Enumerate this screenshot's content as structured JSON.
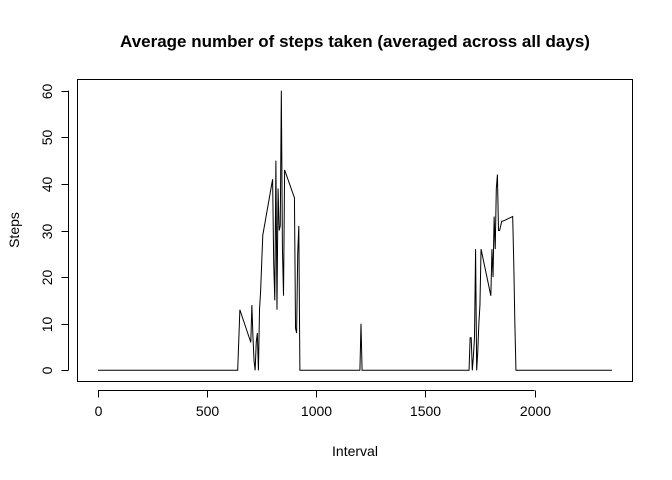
{
  "chart_data": {
    "type": "line",
    "title": "Average number of steps taken (averaged across all days)",
    "xlabel": "Interval",
    "ylabel": "Steps",
    "xlim": [
      -94,
      2449
    ],
    "ylim": [
      -2.4,
      62.4
    ],
    "xticks": [
      0,
      500,
      1000,
      1500,
      2000
    ],
    "xtick_labels": [
      "0",
      "500",
      "1000",
      "1500",
      "2000"
    ],
    "yticks": [
      0,
      10,
      20,
      30,
      40,
      50,
      60
    ],
    "ytick_labels": [
      "0",
      "10",
      "20",
      "30",
      "40",
      "50",
      "60"
    ],
    "grid": false,
    "legend": "none",
    "line_color": "#000000",
    "series": [
      {
        "x": [
          0,
          640,
          650,
          700,
          705,
          710,
          715,
          720,
          725,
          730,
          735,
          740,
          745,
          750,
          755,
          800,
          805,
          810,
          815,
          820,
          825,
          830,
          835,
          840,
          845,
          850,
          855,
          900,
          905,
          910,
          915,
          920,
          925,
          930,
          935,
          1200,
          1205,
          1210,
          1215,
          1700,
          1705,
          1710,
          1715,
          1720,
          1725,
          1730,
          1735,
          1740,
          1745,
          1750,
          1755,
          1800,
          1805,
          1810,
          1815,
          1820,
          1825,
          1830,
          1835,
          1840,
          1845,
          1850,
          1855,
          1900,
          1905,
          1910,
          1915,
          1920,
          1925,
          2355
        ],
        "y": [
          0,
          0,
          13,
          6,
          14,
          7,
          2,
          0,
          6,
          8,
          0,
          13,
          17,
          23,
          29,
          41,
          23,
          15,
          45,
          13,
          39,
          30,
          31,
          60,
          26,
          16,
          43,
          37,
          9,
          8,
          25,
          31,
          0,
          0,
          0,
          0,
          10,
          0,
          0,
          0,
          7,
          7,
          0,
          3,
          7,
          26,
          0,
          4,
          10,
          14,
          26,
          16,
          26,
          20,
          33,
          26,
          39,
          42,
          30,
          30,
          31,
          32,
          32,
          33,
          23,
          10,
          0,
          0,
          0,
          0
        ]
      }
    ]
  }
}
